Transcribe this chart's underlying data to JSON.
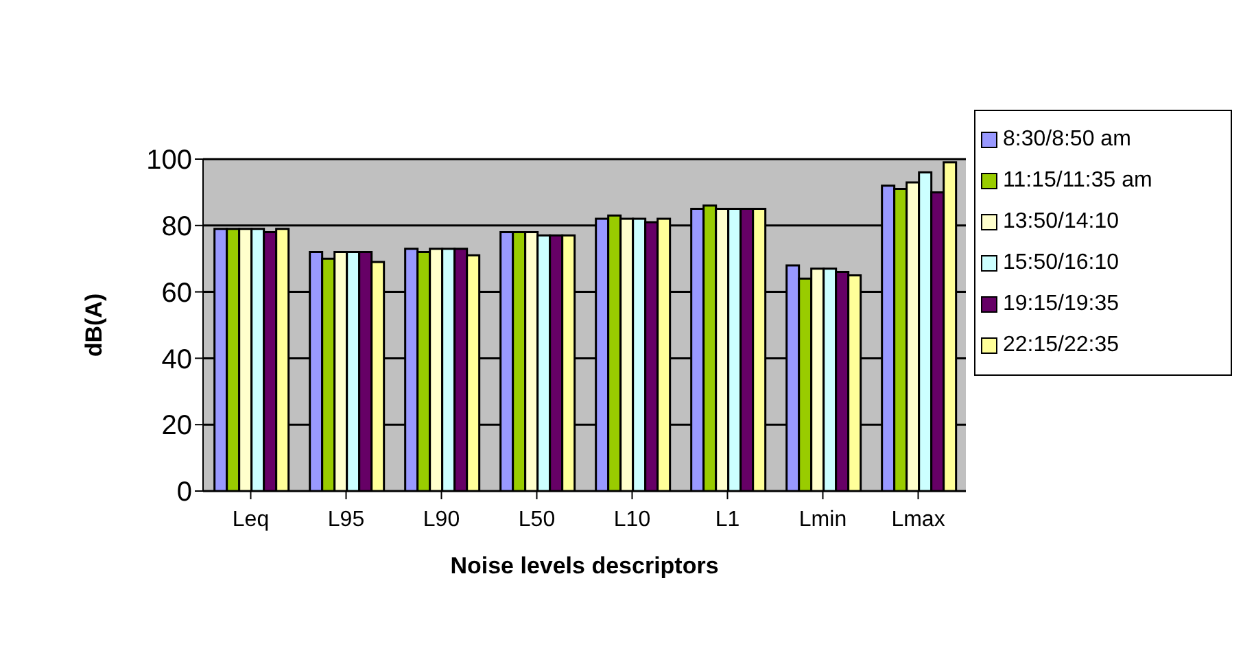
{
  "chart_data": {
    "type": "bar",
    "xlabel": "Noise levels descriptors",
    "ylabel": "dB(A)",
    "categories": [
      "Leq",
      "L95",
      "L90",
      "L50",
      "L10",
      "L1",
      "Lmin",
      "Lmax"
    ],
    "series": [
      {
        "name": "8:30/8:50 am",
        "color": "#9999ff",
        "values": [
          79,
          72,
          73,
          78,
          82,
          85,
          68,
          92
        ]
      },
      {
        "name": "11:15/11:35 am",
        "color": "#99cc00",
        "values": [
          79,
          70,
          72,
          78,
          83,
          86,
          64,
          91
        ]
      },
      {
        "name": "13:50/14:10",
        "color": "#ffffcc",
        "values": [
          79,
          72,
          73,
          78,
          82,
          85,
          67,
          93
        ]
      },
      {
        "name": "15:50/16:10",
        "color": "#ccffff",
        "values": [
          79,
          72,
          73,
          77,
          82,
          85,
          67,
          96
        ]
      },
      {
        "name": "19:15/19:35",
        "color": "#660066",
        "values": [
          78,
          72,
          73,
          77,
          81,
          85,
          66,
          90
        ]
      },
      {
        "name": "22:15/22:35",
        "color": "#ffff99",
        "values": [
          79,
          69,
          71,
          77,
          82,
          85,
          65,
          99
        ]
      }
    ],
    "ylim": [
      0,
      100
    ],
    "yticks": [
      0,
      20,
      40,
      60,
      80,
      100
    ],
    "grid": "y",
    "legend": "right"
  }
}
